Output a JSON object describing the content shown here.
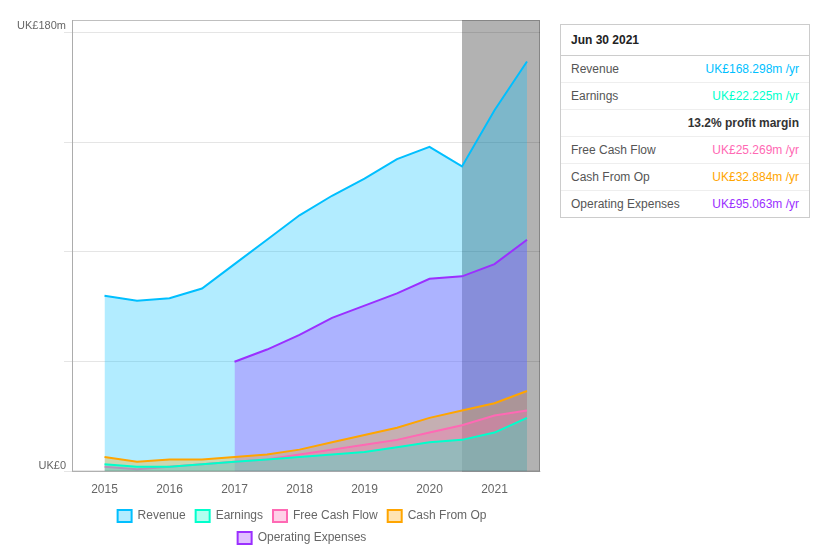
{
  "chart_data": {
    "type": "area",
    "x": [
      2014.5,
      2015.0,
      2015.5,
      2016.0,
      2016.5,
      2017.0,
      2017.5,
      2018.0,
      2018.5,
      2019.0,
      2019.5,
      2020.0,
      2020.5,
      2021.0,
      2021.5
    ],
    "series": [
      {
        "name": "Revenue",
        "color": "#00bfff",
        "values": [
          null,
          72,
          70,
          71,
          75,
          85,
          95,
          105,
          113,
          120,
          128,
          133,
          125,
          148,
          168
        ]
      },
      {
        "name": "Earnings",
        "color": "#00ffcc",
        "values": [
          null,
          3,
          2,
          2,
          3,
          4,
          5,
          6,
          7,
          8,
          10,
          12,
          13,
          16,
          22
        ]
      },
      {
        "name": "Free Cash Flow",
        "color": "#ff69b4",
        "values": [
          null,
          2,
          1,
          2,
          3,
          4,
          5,
          7,
          9,
          11,
          13,
          16,
          19,
          23,
          25
        ]
      },
      {
        "name": "Cash From Op",
        "color": "#ffa500",
        "values": [
          null,
          6,
          4,
          5,
          5,
          6,
          7,
          9,
          12,
          15,
          18,
          22,
          25,
          28,
          33
        ]
      },
      {
        "name": "Operating Expenses",
        "color": "#9b30ff",
        "values": [
          null,
          null,
          null,
          null,
          null,
          45,
          50,
          56,
          63,
          68,
          73,
          79,
          80,
          85,
          95
        ]
      }
    ],
    "xlim": [
      2014.5,
      2021.7
    ],
    "xticks": [
      2015,
      2016,
      2017,
      2018,
      2019,
      2020,
      2021
    ],
    "ylim": [
      0,
      185
    ],
    "yticks": [
      0,
      45,
      90,
      135,
      180
    ],
    "grid": true,
    "tick_labels": "x",
    "legend": "bottom",
    "annotations": [
      "UK£180m",
      "UK£0"
    ],
    "highlight": [
      2020.5,
      2021.7
    ],
    "info_box": {
      "title": "Jun 30 2021",
      "rows": [
        {
          "label": "Revenue",
          "value": "UK£168.298m /yr"
        },
        {
          "label": "Earnings",
          "value": "UK£22.225m /yr"
        },
        {
          "value": "13.2% profit margin"
        },
        {
          "label": "Free Cash Flow",
          "value": "UK£25.269m /yr"
        },
        {
          "label": "Cash From Op",
          "value": "UK£32.884m /yr"
        },
        {
          "label": "Operating Expenses",
          "value": "UK£95.063m /yr"
        }
      ]
    }
  }
}
